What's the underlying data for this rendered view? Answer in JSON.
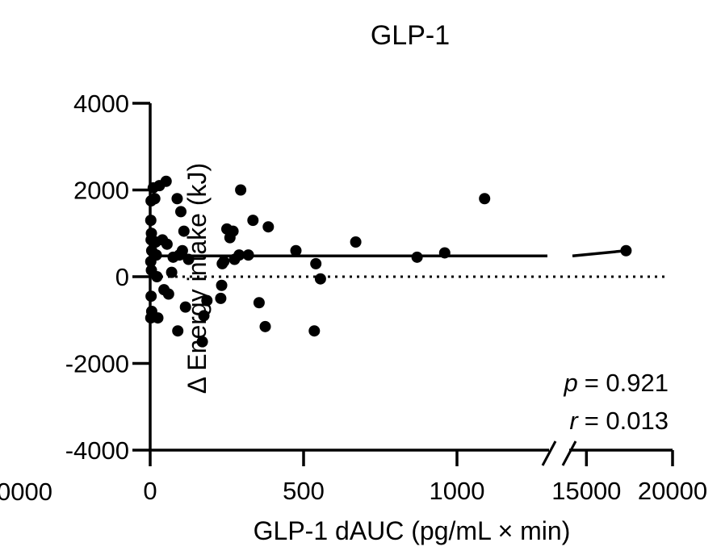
{
  "chart_data": {
    "type": "scatter",
    "title": "GLP-1",
    "xlabel": "GLP-1 dAUC (pg/mL × min)",
    "ylabel": "Δ Energy intake (kJ)",
    "ylim": [
      -4000,
      4000
    ],
    "yticks": [
      "4000",
      "2000",
      "0",
      "-2000",
      "-4000"
    ],
    "x_axis_segments": [
      {
        "range": [
          0,
          1300
        ],
        "ticks": [
          "0",
          "500",
          "1000"
        ]
      },
      {
        "range": [
          14000,
          20000
        ],
        "ticks": [
          "15000",
          "20000"
        ]
      }
    ],
    "x_axis_break": true,
    "partial_left_tick_label": "0000",
    "regression_line": {
      "y": 480
    },
    "zero_line": {
      "y": 0,
      "style": "dotted"
    },
    "stats": {
      "p_label": "p",
      "p_value": "= 0.921",
      "r_label": "r",
      "r_value": "= 0.013"
    },
    "points": [
      {
        "x": 2,
        "y": 1300
      },
      {
        "x": 3,
        "y": 1750
      },
      {
        "x": 4,
        "y": 1000
      },
      {
        "x": 3,
        "y": 850
      },
      {
        "x": 5,
        "y": 600
      },
      {
        "x": 2,
        "y": 350
      },
      {
        "x": 4,
        "y": 150
      },
      {
        "x": 3,
        "y": -450
      },
      {
        "x": 5,
        "y": -800
      },
      {
        "x": 2,
        "y": -950
      },
      {
        "x": 10,
        "y": 2050
      },
      {
        "x": 15,
        "y": 1800
      },
      {
        "x": 18,
        "y": 800
      },
      {
        "x": 20,
        "y": 500
      },
      {
        "x": 22,
        "y": 0
      },
      {
        "x": 25,
        "y": -950
      },
      {
        "x": 30,
        "y": 2100
      },
      {
        "x": 40,
        "y": 850
      },
      {
        "x": 45,
        "y": -300
      },
      {
        "x": 52,
        "y": 2200
      },
      {
        "x": 55,
        "y": 750
      },
      {
        "x": 60,
        "y": -400
      },
      {
        "x": 70,
        "y": 100
      },
      {
        "x": 75,
        "y": 450
      },
      {
        "x": 88,
        "y": 1800
      },
      {
        "x": 90,
        "y": -1250
      },
      {
        "x": 95,
        "y": 500
      },
      {
        "x": 100,
        "y": 1500
      },
      {
        "x": 105,
        "y": 600
      },
      {
        "x": 110,
        "y": 1050
      },
      {
        "x": 115,
        "y": -700
      },
      {
        "x": 125,
        "y": 400
      },
      {
        "x": 170,
        "y": -1500
      },
      {
        "x": 175,
        "y": -900
      },
      {
        "x": 185,
        "y": -550
      },
      {
        "x": 230,
        "y": -500
      },
      {
        "x": 233,
        "y": -200
      },
      {
        "x": 235,
        "y": 300
      },
      {
        "x": 240,
        "y": 350
      },
      {
        "x": 250,
        "y": 1100
      },
      {
        "x": 260,
        "y": 900
      },
      {
        "x": 270,
        "y": 1050
      },
      {
        "x": 275,
        "y": 400
      },
      {
        "x": 290,
        "y": 500
      },
      {
        "x": 295,
        "y": 2000
      },
      {
        "x": 320,
        "y": 500
      },
      {
        "x": 335,
        "y": 1300
      },
      {
        "x": 355,
        "y": -600
      },
      {
        "x": 375,
        "y": -1150
      },
      {
        "x": 385,
        "y": 1150
      },
      {
        "x": 475,
        "y": 600
      },
      {
        "x": 535,
        "y": -1250
      },
      {
        "x": 540,
        "y": 300
      },
      {
        "x": 555,
        "y": -50
      },
      {
        "x": 670,
        "y": 800
      },
      {
        "x": 870,
        "y": 450
      },
      {
        "x": 960,
        "y": 550
      },
      {
        "x": 1090,
        "y": 1800
      },
      {
        "x": 17300,
        "y": 600
      }
    ]
  }
}
